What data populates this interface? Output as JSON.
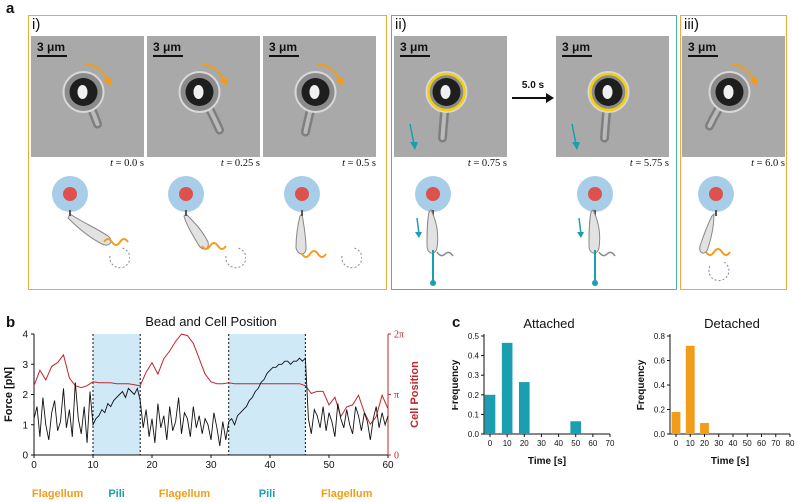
{
  "figure": {
    "panel_a": {
      "letter": "a",
      "groups": [
        {
          "label": "i)",
          "border_color": "#f2a93b"
        },
        {
          "label": "ii)",
          "border_color": "#4ab2c2"
        },
        {
          "label": "iii)",
          "border_color": "#f2a93b"
        }
      ],
      "scale_label": "3 μm",
      "frames": [
        {
          "time_prefix": "t",
          "time_value": "= 0.0 s",
          "rotation_arrow": true,
          "yellow_ring": false,
          "teal_arrow": false
        },
        {
          "time_prefix": "t",
          "time_value": "= 0.25 s",
          "rotation_arrow": true,
          "yellow_ring": false,
          "teal_arrow": false
        },
        {
          "time_prefix": "t",
          "time_value": "= 0.5 s",
          "rotation_arrow": true,
          "yellow_ring": false,
          "teal_arrow": false
        },
        {
          "time_prefix": "t",
          "time_value": "= 0.75 s",
          "rotation_arrow": false,
          "yellow_ring": true,
          "teal_arrow": true
        },
        {
          "time_prefix": "t",
          "time_value": "= 5.75 s",
          "rotation_arrow": false,
          "yellow_ring": true,
          "teal_arrow": true
        },
        {
          "time_prefix": "t",
          "time_value": "= 6.0 s",
          "rotation_arrow": true,
          "yellow_ring": false,
          "teal_arrow": false
        }
      ],
      "gap_arrow_label": "5.0 s",
      "colors": {
        "flagellum": "#f29d1a",
        "pili": "#1a9fb0",
        "ring": "#f5d000",
        "bead_halo": "#a8cde8",
        "bead_core": "#e2453c"
      }
    },
    "panel_b": {
      "letter": "b"
    },
    "panel_c": {
      "letter": "c"
    },
    "phases": [
      {
        "label": "Flagellum",
        "color": "#f29d1a"
      },
      {
        "label": "Pili",
        "color": "#1a9fb0"
      },
      {
        "label": "Flagellum",
        "color": "#f29d1a"
      },
      {
        "label": "Pili",
        "color": "#1a9fb0"
      },
      {
        "label": "Flagellum",
        "color": "#f29d1a"
      }
    ]
  },
  "chart_data": [
    {
      "type": "line",
      "title": "Bead and Cell Position",
      "xlabel": "Time [s]",
      "ylabel": "Force [pN]",
      "ylabel_right": "Cell Position",
      "xlim": [
        0,
        60
      ],
      "ylim": [
        0,
        4
      ],
      "ylim_right": [
        0,
        6.283
      ],
      "x_ticks": [
        "0",
        "10",
        "20",
        "30",
        "40",
        "50",
        "60"
      ],
      "y_ticks": [
        "0",
        "1",
        "2",
        "3",
        "4"
      ],
      "y_right_ticks": [
        "0",
        "π",
        "2π"
      ],
      "shaded_regions": [
        [
          10,
          18
        ],
        [
          33,
          46
        ]
      ],
      "shade_color": "#cfe9f7",
      "series": [
        {
          "name": "Force",
          "color": "#111111",
          "x": [
            0,
            0.5,
            1,
            1.5,
            2,
            2.5,
            3,
            3.5,
            4,
            4.5,
            5,
            5.5,
            6,
            6.5,
            7,
            7.5,
            8,
            8.5,
            9,
            9.5,
            10,
            10.5,
            11,
            11.5,
            12,
            12.5,
            13,
            13.5,
            14,
            14.5,
            15,
            15.5,
            16,
            16.5,
            17,
            17.5,
            18,
            18.5,
            19,
            19.5,
            20,
            20.5,
            21,
            21.5,
            22,
            22.5,
            23,
            23.5,
            24,
            24.5,
            25,
            25.5,
            26,
            26.5,
            27,
            27.5,
            28,
            28.5,
            29,
            29.5,
            30,
            30.5,
            31,
            31.5,
            32,
            32.5,
            33,
            33.5,
            34,
            34.5,
            35,
            35.5,
            36,
            36.5,
            37,
            37.5,
            38,
            38.5,
            39,
            39.5,
            40,
            40.5,
            41,
            41.5,
            42,
            42.5,
            43,
            43.5,
            44,
            44.5,
            45,
            45.5,
            46,
            46.5,
            47,
            47.5,
            48,
            48.5,
            49,
            49.5,
            50,
            50.5,
            51,
            51.5,
            52,
            52.5,
            53,
            53.5,
            54,
            54.5,
            55,
            55.5,
            56,
            56.5,
            57,
            57.5,
            58,
            58.5,
            59,
            59.5,
            60
          ],
          "y": [
            1.2,
            1.6,
            0.6,
            1.9,
            1.0,
            0.5,
            1.4,
            1.8,
            0.8,
            1.1,
            2.2,
            0.9,
            1.5,
            0.6,
            2.4,
            1.2,
            0.7,
            1.6,
            0.4,
            2.1,
            1.0,
            1.2,
            1.3,
            1.5,
            1.4,
            1.7,
            1.6,
            1.8,
            1.9,
            2.0,
            2.1,
            1.9,
            2.2,
            2.1,
            2.0,
            2.2,
            1.8,
            0.9,
            1.5,
            0.6,
            1.2,
            0.4,
            1.7,
            0.9,
            1.3,
            0.5,
            1.6,
            0.8,
            1.1,
            1.9,
            0.7,
            1.4,
            1.2,
            0.6,
            1.6,
            0.9,
            1.3,
            0.7,
            1.2,
            1.0,
            0.5,
            1.4,
            0.9,
            0.3,
            1.1,
            0.5,
            1.1,
            1.2,
            1.0,
            1.3,
            1.4,
            1.5,
            1.6,
            1.8,
            1.9,
            2.1,
            2.2,
            2.4,
            2.5,
            2.7,
            2.8,
            2.9,
            2.9,
            3.0,
            3.0,
            3.1,
            3.1,
            3.0,
            3.1,
            3.1,
            3.2,
            3.1,
            3.2,
            1.2,
            0.7,
            1.5,
            1.3,
            0.9,
            1.6,
            0.8,
            1.4,
            1.1,
            0.6,
            1.7,
            1.2,
            0.9,
            1.5,
            1.0,
            0.7,
            1.6,
            1.3,
            0.8,
            1.4,
            1.1,
            0.5,
            1.2,
            1.6,
            0.9,
            1.4,
            1.0,
            1.3
          ]
        },
        {
          "name": "Cell Position",
          "color": "#c1272d",
          "x": [
            0,
            1,
            2,
            3,
            4,
            5,
            6,
            7,
            8,
            9,
            10,
            11,
            12,
            13,
            14,
            15,
            16,
            17,
            18,
            19,
            20,
            21,
            22,
            23,
            24,
            25,
            26,
            27,
            28,
            29,
            30,
            31,
            32,
            33,
            34,
            35,
            36,
            37,
            38,
            39,
            40,
            41,
            42,
            43,
            44,
            45,
            46,
            47,
            48,
            49,
            50,
            51,
            52,
            53,
            54,
            55,
            56,
            57,
            58,
            59,
            60
          ],
          "y": [
            3.6,
            4.4,
            3.9,
            4.6,
            4.8,
            5.2,
            4.0,
            3.6,
            3.5,
            3.6,
            3.8,
            3.75,
            3.75,
            3.75,
            3.7,
            3.7,
            3.7,
            3.65,
            3.6,
            4.3,
            4.8,
            4.2,
            5.0,
            5.4,
            5.9,
            6.28,
            6.2,
            5.8,
            5.0,
            4.2,
            3.8,
            3.7,
            3.7,
            3.75,
            3.7,
            3.7,
            3.7,
            3.7,
            3.7,
            3.7,
            3.7,
            3.7,
            3.7,
            3.7,
            3.7,
            3.7,
            3.6,
            3.2,
            3.3,
            3.3,
            2.6,
            3.0,
            2.0,
            2.5,
            2.6,
            3.1,
            2.2,
            1.6,
            2.0,
            3.1,
            2.4
          ]
        }
      ]
    },
    {
      "type": "bar",
      "title": "Attached",
      "xlabel": "Time [s]",
      "ylabel": "Frequency",
      "color": "#1a9fb0",
      "categories": [
        "0",
        "10",
        "20",
        "30",
        "40",
        "50",
        "60",
        "70"
      ],
      "values": [
        0.2,
        0.465,
        0.265,
        0,
        0,
        0.065,
        0,
        0
      ],
      "ylim": [
        0,
        0.5
      ],
      "y_ticks": [
        "0.0",
        "0.1",
        "0.2",
        "0.3",
        "0.4",
        "0.5"
      ]
    },
    {
      "type": "bar",
      "title": "Detached",
      "xlabel": "Time [s]",
      "ylabel": "Frequency",
      "color": "#f29d1a",
      "categories": [
        "0",
        "10",
        "20",
        "30",
        "40",
        "50",
        "60",
        "70",
        "80"
      ],
      "values": [
        0.18,
        0.72,
        0.09,
        0,
        0,
        0,
        0,
        0,
        0
      ],
      "ylim": [
        0,
        0.8
      ],
      "y_ticks": [
        "0.0",
        "0.2",
        "0.4",
        "0.6",
        "0.8"
      ]
    }
  ]
}
